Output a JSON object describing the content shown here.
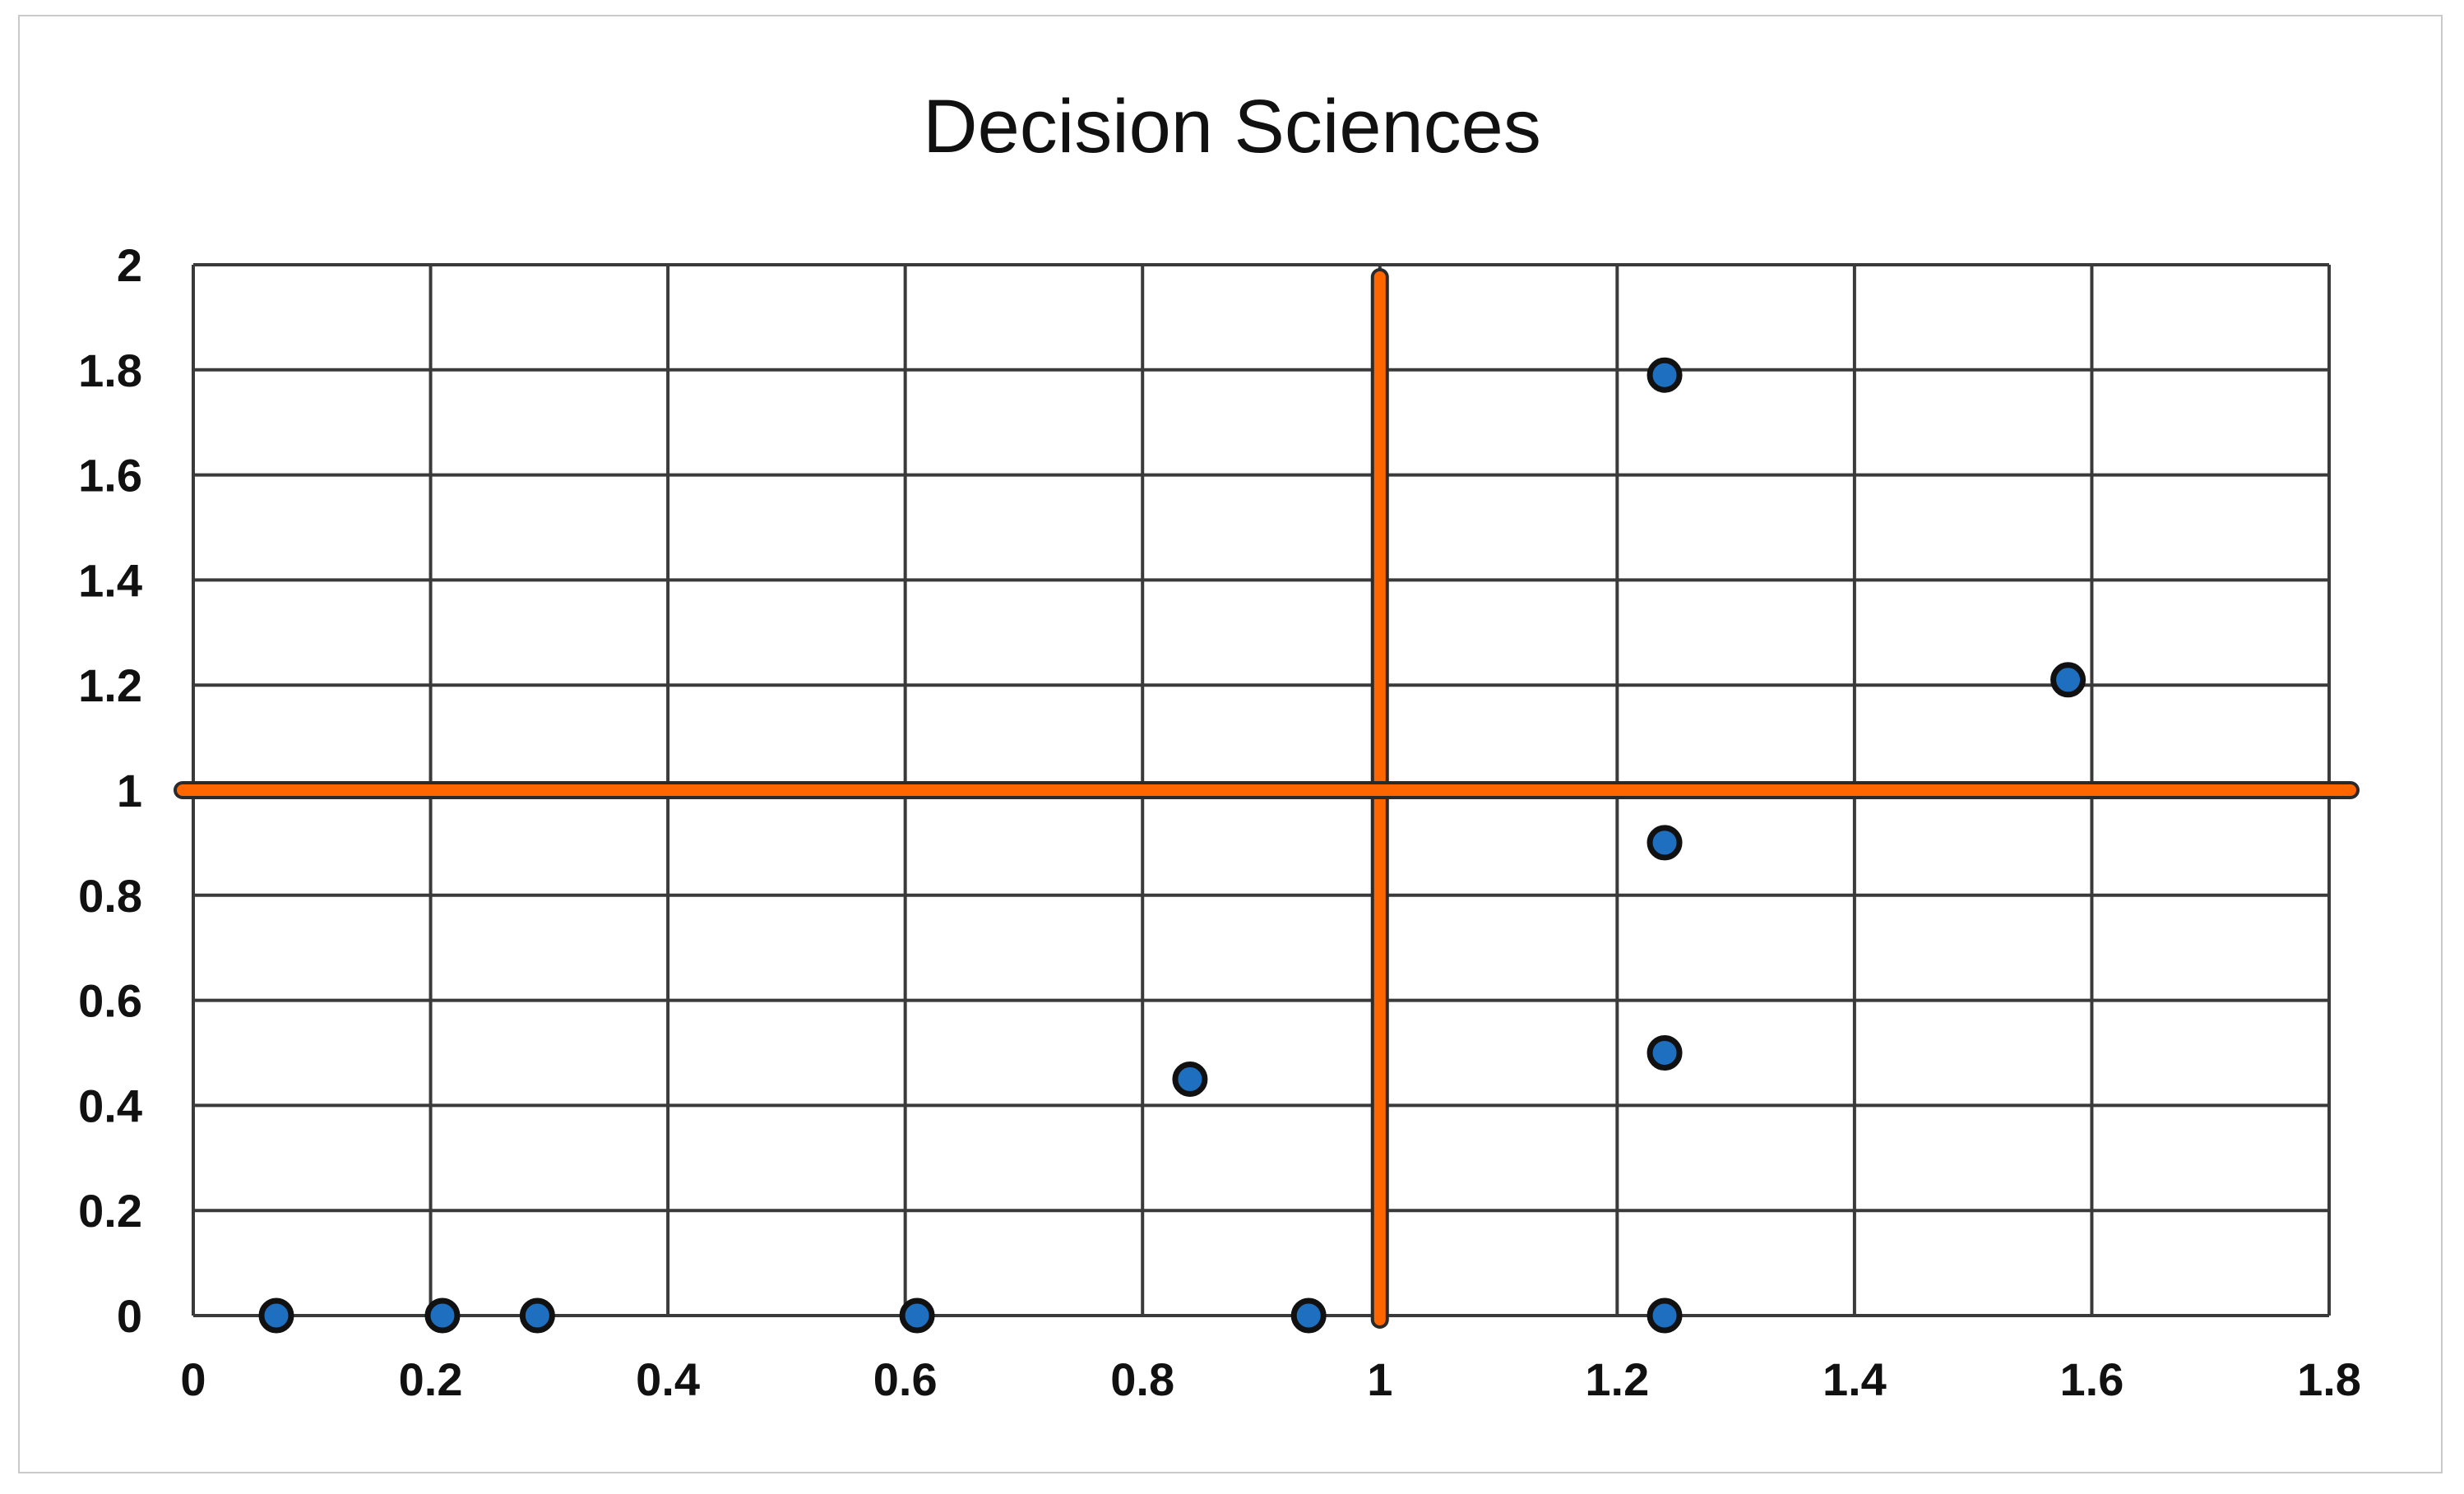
{
  "chart_data": {
    "type": "scatter",
    "title": "Decision Sciences",
    "xlabel": "",
    "ylabel": "",
    "xlim": [
      0,
      1.8
    ],
    "ylim": [
      0,
      2
    ],
    "x_ticks": [
      "0",
      "0.2",
      "0.4",
      "0.6",
      "0.8",
      "1",
      "1.2",
      "1.4",
      "1.6",
      "1.8"
    ],
    "y_ticks": [
      "0",
      "0.2",
      "0.4",
      "0.6",
      "0.8",
      "1",
      "1.2",
      "1.4",
      "1.6",
      "1.8",
      "2"
    ],
    "grid": true,
    "legend": "none",
    "series": [
      {
        "color": "#1f6fc0",
        "points": [
          {
            "x": 0.07,
            "y": 0
          },
          {
            "x": 0.21,
            "y": 0
          },
          {
            "x": 0.29,
            "y": 0
          },
          {
            "x": 0.61,
            "y": 0
          },
          {
            "x": 0.94,
            "y": 0
          },
          {
            "x": 1.24,
            "y": 0
          },
          {
            "x": 0.84,
            "y": 0.45
          },
          {
            "x": 1.24,
            "y": 0.5
          },
          {
            "x": 1.24,
            "y": 0.9
          },
          {
            "x": 1.58,
            "y": 1.21
          },
          {
            "x": 1.24,
            "y": 1.79
          }
        ]
      }
    ],
    "reference_lines": {
      "vertical_x": 1,
      "horizontal_y": 1,
      "color": "#ff6600"
    }
  }
}
